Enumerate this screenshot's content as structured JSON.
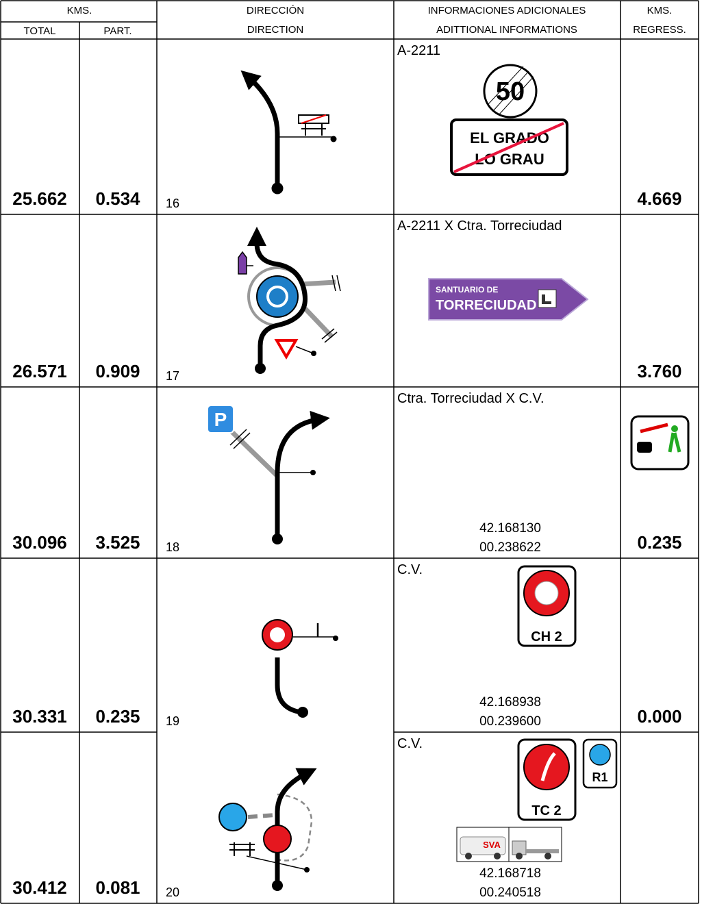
{
  "header": {
    "kms": "KMS.",
    "total": "TOTAL",
    "part": "PART.",
    "direccion": "DIRECCIÓN",
    "direction": "DIRECTION",
    "info_es": "INFORMACIONES ADICIONALES",
    "info_en": "ADITTIONAL INFORMATIONS",
    "regress_1": "KMS.",
    "regress_2": "REGRESS."
  },
  "rows": [
    {
      "total": "25.662",
      "part": "0.534",
      "number": "16",
      "info": "A-2211",
      "regress": "4.669",
      "signs": [
        "50",
        "EL GRADO",
        "LO GRAU"
      ]
    },
    {
      "total": "26.571",
      "part": "0.909",
      "number": "17",
      "info": "A-2211 X Ctra. Torreciudad",
      "regress": "3.760",
      "signs": [
        "SANTUARIO DE",
        "TORRECIUDAD"
      ]
    },
    {
      "total": "30.096",
      "part": "3.525",
      "number": "18",
      "info": "Ctra. Torreciudad X C.V.",
      "regress": "0.235",
      "coords": [
        "42.168130",
        "00.238622"
      ],
      "signs": [
        "P"
      ]
    },
    {
      "total": "30.331",
      "part": "0.235",
      "number": "19",
      "info": "C.V.",
      "regress": "0.000",
      "coords": [
        "42.168938",
        "00.239600"
      ],
      "signs": [
        "CH 2"
      ]
    },
    {
      "total": "30.412",
      "part": "0.081",
      "number": "20",
      "info": "C.V.",
      "coords": [
        "42.168718",
        "00.240518"
      ],
      "signs": [
        "TC 2",
        "R1",
        "SVA"
      ]
    }
  ]
}
